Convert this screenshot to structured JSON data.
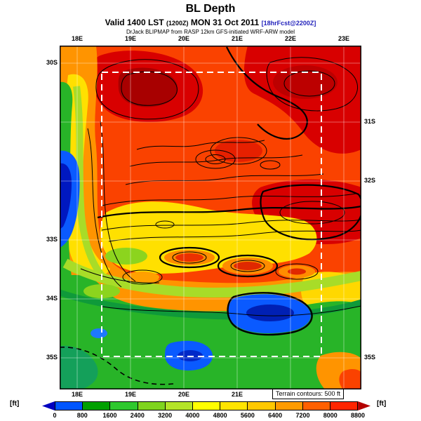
{
  "header": {
    "title": "BL Depth",
    "valid_main_1": "Valid 1400 LST",
    "valid_small_1": "(1200Z)",
    "valid_main_2": "MON 31 Oct 2011",
    "valid_small_2": "[18hrFcst@2200Z]",
    "model_line": "DrJack BLIPMAP from RASP 12km GFS-initiated WRF-ARW model"
  },
  "map": {
    "lon_labels_top": [
      "18E",
      "19E",
      "20E",
      "21E",
      "22E",
      "23E"
    ],
    "lon_labels_bottom": [
      "18E",
      "19E",
      "20E",
      "21E"
    ],
    "lat_labels_left": [
      "30S",
      "33S",
      "34S",
      "35S"
    ],
    "lat_labels_right": [
      "31S",
      "32S",
      "35S"
    ],
    "terrain_note": "Terrain contours: 500 ft"
  },
  "colorbar": {
    "unit_left": "[ft]",
    "unit_right": "[ft]",
    "tick_labels": [
      "0",
      "800",
      "1600",
      "2400",
      "3200",
      "4000",
      "4800",
      "5600",
      "6400",
      "7200",
      "8000",
      "8800"
    ],
    "colors": [
      "#0000c0",
      "#0055ff",
      "#00a000",
      "#2ec82e",
      "#7fd41e",
      "#b4e428",
      "#ffff00",
      "#ffe400",
      "#ffc800",
      "#ff9b00",
      "#ff6000",
      "#ff2500",
      "#b40000"
    ]
  },
  "chart_data": {
    "type": "heatmap",
    "title": "BL Depth",
    "valid": "Valid 1400 LST (1200Z) MON 31 Oct 2011 [18hrFcst@2200Z]",
    "model": "DrJack BLIPMAP from RASP 12km GFS-initiated WRF-ARW model",
    "units": "ft",
    "x_axis": {
      "label": "longitude",
      "ticks": [
        "18E",
        "19E",
        "20E",
        "21E",
        "22E",
        "23E"
      ],
      "range": [
        18,
        23
      ]
    },
    "y_axis": {
      "label": "latitude",
      "ticks": [
        "30S",
        "31S",
        "32S",
        "33S",
        "34S",
        "35S"
      ],
      "range": [
        -35.5,
        -29.8
      ]
    },
    "levels_ft": [
      0,
      800,
      1600,
      2400,
      3200,
      4000,
      4800,
      5600,
      6400,
      7200,
      8000,
      8800
    ],
    "palette": [
      "#0000c0",
      "#0055ff",
      "#00a000",
      "#2ec82e",
      "#7fd41e",
      "#b4e428",
      "#ffff00",
      "#ffe400",
      "#ffc800",
      "#ff9b00",
      "#ff6000",
      "#ff2500",
      "#b40000"
    ],
    "overlays": [
      "black terrain contour lines every 500 ft",
      "white dashed model-domain boundary box",
      "lat/lon grid lines every 1 degree"
    ],
    "annotations": [
      "Terrain contours: 500 ft"
    ],
    "regions": [
      {
        "area": "northern and eastern interior (Karoo, north of ~32.5S)",
        "bl_depth_ft": "7200-8800+"
      },
      {
        "area": "dark red maxima near 19.5E 30.5S, 22E 30.5S and 22.5E 32.5S",
        "bl_depth_ft": ">8000"
      },
      {
        "area": "west coast strip near 18E, 31.5S-33.5S",
        "bl_depth_ft": "0-800"
      },
      {
        "area": "western and southern coastal plains",
        "bl_depth_ft": "1600-3200"
      },
      {
        "area": "central mountain band ~33S-34S",
        "bl_depth_ft": "4000-8000 alternating ridge/valley"
      },
      {
        "area": "south coast pockets near 20.5E-21.5E 34.3S and 19.8E 35S",
        "bl_depth_ft": "0-800"
      },
      {
        "area": "southeast corner",
        "bl_depth_ft": "4800-7200"
      }
    ],
    "legend_position": "bottom colorbar"
  }
}
